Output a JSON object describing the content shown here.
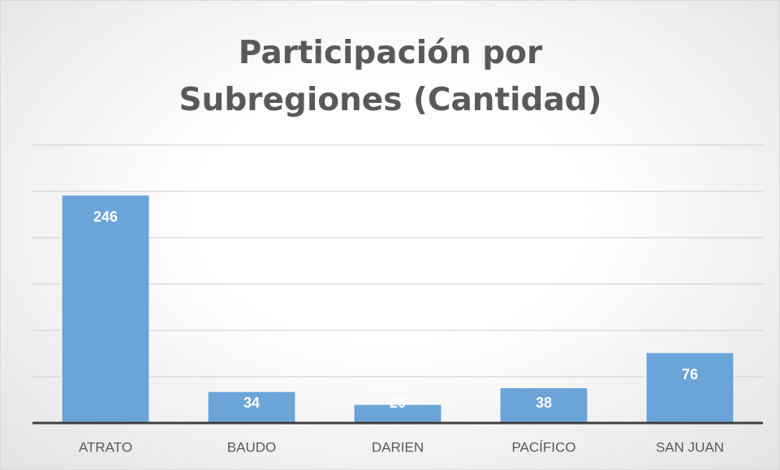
{
  "chart_data": {
    "type": "bar",
    "title": "Participación por Subregiones (Cantidad)",
    "categories": [
      "ATRATO",
      "BAUDO",
      "DARIEN",
      "PACÍFICO",
      "SAN JUAN"
    ],
    "values": [
      246,
      34,
      20,
      38,
      76
    ],
    "color": "#5b9bd5",
    "ylim": [
      0,
      300
    ],
    "yticks": [
      0,
      50,
      100,
      150,
      200,
      250,
      300
    ],
    "grid": true
  }
}
